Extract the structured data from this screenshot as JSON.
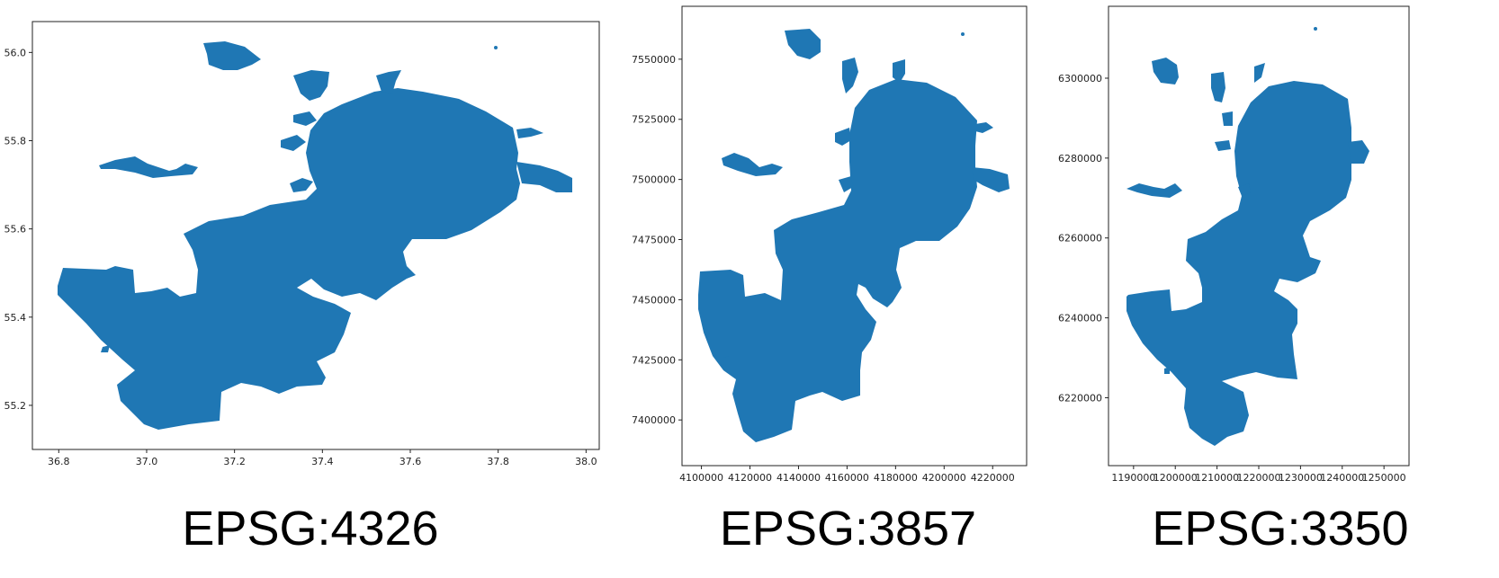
{
  "chart_data": [
    {
      "type": "map",
      "caption": "EPSG:4326",
      "x_ticks": [
        "36.8",
        "37.0",
        "37.2",
        "37.4",
        "37.6",
        "37.8",
        "38.0"
      ],
      "y_ticks": [
        "55.2",
        "55.4",
        "55.6",
        "55.8",
        "56.0"
      ],
      "x_tick_values": [
        36.8,
        37.0,
        37.2,
        37.4,
        37.6,
        37.8,
        38.0
      ],
      "y_tick_values": [
        55.2,
        55.4,
        55.6,
        55.8,
        56.0
      ],
      "xlim": [
        36.74,
        38.03
      ],
      "ylim": [
        55.1,
        56.07
      ],
      "fill_color": "#1f77b4"
    },
    {
      "type": "map",
      "caption": "EPSG:3857",
      "x_ticks": [
        "4100000",
        "4120000",
        "4140000",
        "4160000",
        "4180000",
        "4200000",
        "4220000"
      ],
      "y_ticks": [
        "7400000",
        "7425000",
        "7450000",
        "7475000",
        "7500000",
        "7525000",
        "7550000"
      ],
      "x_tick_values": [
        4100000,
        4120000,
        4140000,
        4160000,
        4180000,
        4200000,
        4220000
      ],
      "y_tick_values": [
        7400000,
        7425000,
        7450000,
        7475000,
        7500000,
        7525000,
        7550000
      ],
      "xlim": [
        4092000,
        4234000
      ],
      "ylim": [
        7381000,
        7572000
      ],
      "fill_color": "#1f77b4"
    },
    {
      "type": "map",
      "caption": "EPSG:3350",
      "x_ticks": [
        "1190000",
        "1200000",
        "1210000",
        "1220000",
        "1230000",
        "1240000",
        "1250000"
      ],
      "y_ticks": [
        "6220000",
        "6240000",
        "6260000",
        "6280000",
        "6300000"
      ],
      "x_tick_values": [
        1190000,
        1200000,
        1210000,
        1220000,
        1230000,
        1240000,
        1250000
      ],
      "y_tick_values": [
        6220000,
        6240000,
        6260000,
        6280000,
        6300000
      ],
      "xlim": [
        1184000,
        1256000
      ],
      "ylim": [
        6203000,
        6318000
      ],
      "fill_color": "#1f77b4"
    }
  ]
}
